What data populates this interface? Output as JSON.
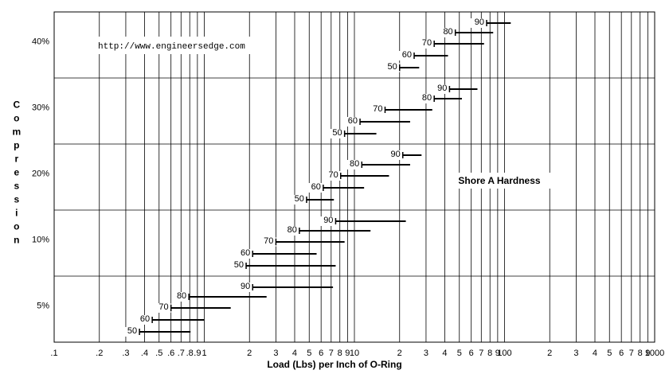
{
  "chart_data": {
    "type": "range-bar",
    "annotation": "http://www.engineersedge.com",
    "legend_title": "Shore A Hardness",
    "xlabel": "Load (Lbs) per Inch of O-Ring",
    "ylabel": "Compression",
    "categories": [
      "5%",
      "10%",
      "20%",
      "30%",
      "40%"
    ],
    "xscale": "log",
    "xlim": [
      0.1,
      1000
    ],
    "xticks": [
      {
        "value": 0.1,
        "label": ".1"
      },
      {
        "value": 0.2,
        "label": ".2"
      },
      {
        "value": 0.3,
        "label": ".3"
      },
      {
        "value": 0.4,
        "label": ".4"
      },
      {
        "value": 0.5,
        "label": ".5"
      },
      {
        "value": 0.6,
        "label": ".6"
      },
      {
        "value": 0.7,
        "label": ".7"
      },
      {
        "value": 0.8,
        "label": ".8"
      },
      {
        "value": 0.9,
        "label": ".9"
      },
      1,
      2,
      3,
      4,
      5,
      6,
      7,
      8,
      9,
      10,
      {
        "value": 20,
        "label": "2"
      },
      {
        "value": 30,
        "label": "3"
      },
      {
        "value": 40,
        "label": "4"
      },
      {
        "value": 50,
        "label": "5"
      },
      {
        "value": 60,
        "label": "6"
      },
      {
        "value": 70,
        "label": "7"
      },
      {
        "value": 80,
        "label": "8"
      },
      {
        "value": 90,
        "label": "9"
      },
      100,
      {
        "value": 200,
        "label": "2"
      },
      {
        "value": 300,
        "label": "3"
      },
      {
        "value": 400,
        "label": "4"
      },
      {
        "value": 500,
        "label": "5"
      },
      {
        "value": 600,
        "label": "6"
      },
      {
        "value": 700,
        "label": "7"
      },
      {
        "value": 800,
        "label": "8"
      },
      {
        "value": 900,
        "label": "9"
      },
      1000
    ],
    "grid": true,
    "color": "#000000",
    "series": [
      {
        "name": "50",
        "low": [
          0.37,
          1.9,
          4.8,
          8.6,
          20
        ],
        "high": [
          0.81,
          7.5,
          7.3,
          14,
          27
        ]
      },
      {
        "name": "60",
        "low": [
          0.45,
          2.1,
          6.2,
          10.9,
          25
        ],
        "high": [
          1,
          5.6,
          11.6,
          23.5,
          42
        ]
      },
      {
        "name": "70",
        "low": [
          0.6,
          3,
          8.1,
          16,
          34
        ],
        "high": [
          1.5,
          8.6,
          17,
          33,
          73
        ]
      },
      {
        "name": "80",
        "low": [
          0.79,
          4.3,
          11.2,
          34,
          47
        ],
        "high": [
          2.6,
          12.8,
          23.5,
          52,
          84
        ]
      },
      {
        "name": "90",
        "low": [
          2.1,
          7.5,
          21,
          43,
          76
        ],
        "high": [
          7.2,
          22,
          28,
          66,
          110
        ]
      }
    ]
  }
}
